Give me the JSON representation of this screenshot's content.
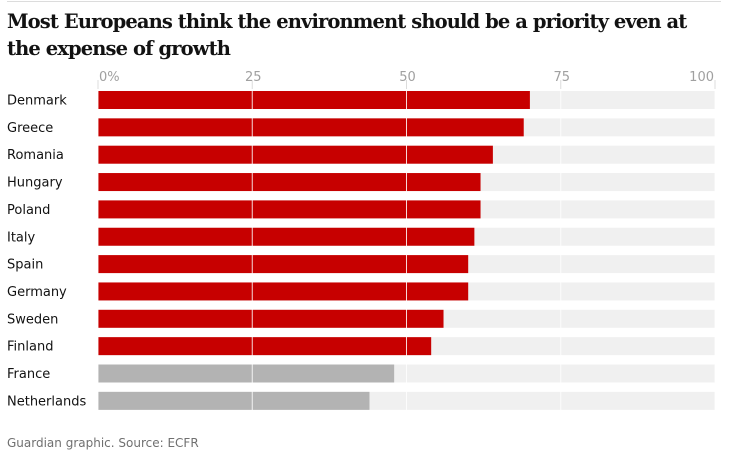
{
  "chart_data": {
    "type": "bar",
    "orientation": "horizontal",
    "title": "Most Europeans think the environment should be a priority even at the expense of growth",
    "categories": [
      "Denmark",
      "Greece",
      "Romania",
      "Hungary",
      "Poland",
      "Italy",
      "Spain",
      "Germany",
      "Sweden",
      "Finland",
      "France",
      "Netherlands"
    ],
    "values": [
      70,
      69,
      64,
      62,
      62,
      61,
      60,
      60,
      56,
      54,
      48,
      44
    ],
    "highlight": [
      true,
      true,
      true,
      true,
      true,
      true,
      true,
      true,
      true,
      true,
      false,
      false
    ],
    "xlim": [
      0,
      100
    ],
    "ticks": [
      0,
      25,
      50,
      75,
      100
    ],
    "tick_labels": [
      "0%",
      "25",
      "50",
      "75",
      "100"
    ],
    "grid": true,
    "colors": {
      "highlight": "#c70000",
      "other": "#b3b3b3",
      "track": "#f0f0f0",
      "grid": "#ffffff"
    }
  },
  "source": "Guardian graphic. Source: ECFR"
}
